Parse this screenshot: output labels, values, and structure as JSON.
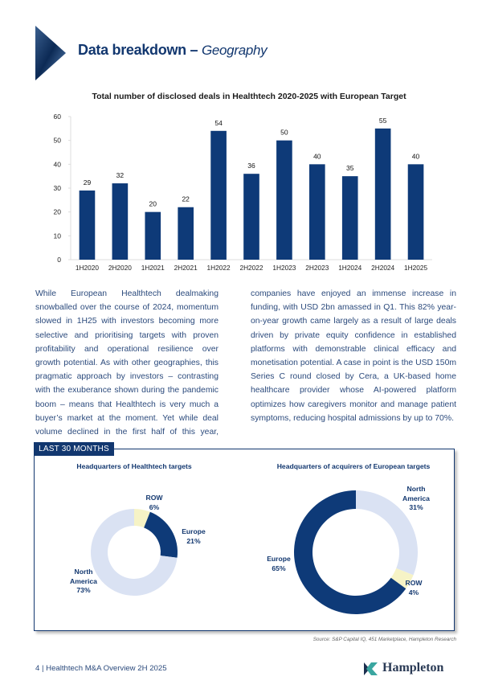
{
  "header": {
    "title": "Data breakdown –",
    "title_emphasis": "Geography"
  },
  "chart_data": [
    {
      "type": "bar",
      "title": "Total number of disclosed deals in Healthtech 2020-2025 with European Target",
      "categories": [
        "1H2020",
        "2H2020",
        "1H2021",
        "2H2021",
        "1H2022",
        "2H2022",
        "1H2023",
        "2H2023",
        "1H2024",
        "2H2024",
        "1H2025"
      ],
      "values": [
        29,
        32,
        20,
        22,
        54,
        36,
        50,
        40,
        35,
        55,
        40
      ],
      "color": "#0e3a78",
      "ylim": [
        0,
        60
      ],
      "yticks": [
        0,
        10,
        20,
        30,
        40,
        50,
        60
      ],
      "grid": false
    },
    {
      "type": "donut",
      "title": "Headquarters of Healthtech targets",
      "categories": [
        "ROW",
        "Europe",
        "North America"
      ],
      "values": [
        6,
        21,
        73
      ],
      "value_labels": [
        "6%",
        "21%",
        "73%"
      ],
      "colors": [
        "#f6f3c6",
        "#0e3a78",
        "#dae2f3"
      ]
    },
    {
      "type": "donut",
      "title": "Headquarters of acquirers of European targets",
      "categories": [
        "North America",
        "ROW",
        "Europe"
      ],
      "values": [
        31,
        4,
        65
      ],
      "value_labels": [
        "31%",
        "4%",
        "65%"
      ],
      "colors": [
        "#dae2f3",
        "#f6f3c6",
        "#0e3a78"
      ]
    }
  ],
  "body": {
    "columns": [
      "While European Healthtech dealmaking snowballed over the course of 2024, momentum slowed in 1H25 with investors becoming more selective and prioritising targets with proven profitability and operational resilience over growth potential. As with other geographies, this pragmatic approach by investors – contrasting with the exuberance shown during the pandemic boom – means that Healthtech is very much a buyer’s market at the moment. Yet while deal volume declined in the first half of this year, European",
      "companies have enjoyed an immense increase in funding, with USD 2bn amassed in Q1. This 82% year-on-year growth came largely as a result of large deals driven by private equity confidence in established platforms with demonstrable clinical efficacy and monetisation potential. A case in point is the USD 150m Series C round closed by Cera, a UK-based home healthcare provider whose AI-powered platform optimizes how caregivers monitor and manage patient symptoms, reducing hospital admissions by up to 70%."
    ]
  },
  "panel": {
    "tag": "LAST 30 MONTHS"
  },
  "source": "Source: S&P Capital IQ, 451 Marketplace, Hampleton Research",
  "footer": {
    "page": "4 | Healthtech M&A Overview 2H 2025",
    "logo": "Hampleton"
  }
}
